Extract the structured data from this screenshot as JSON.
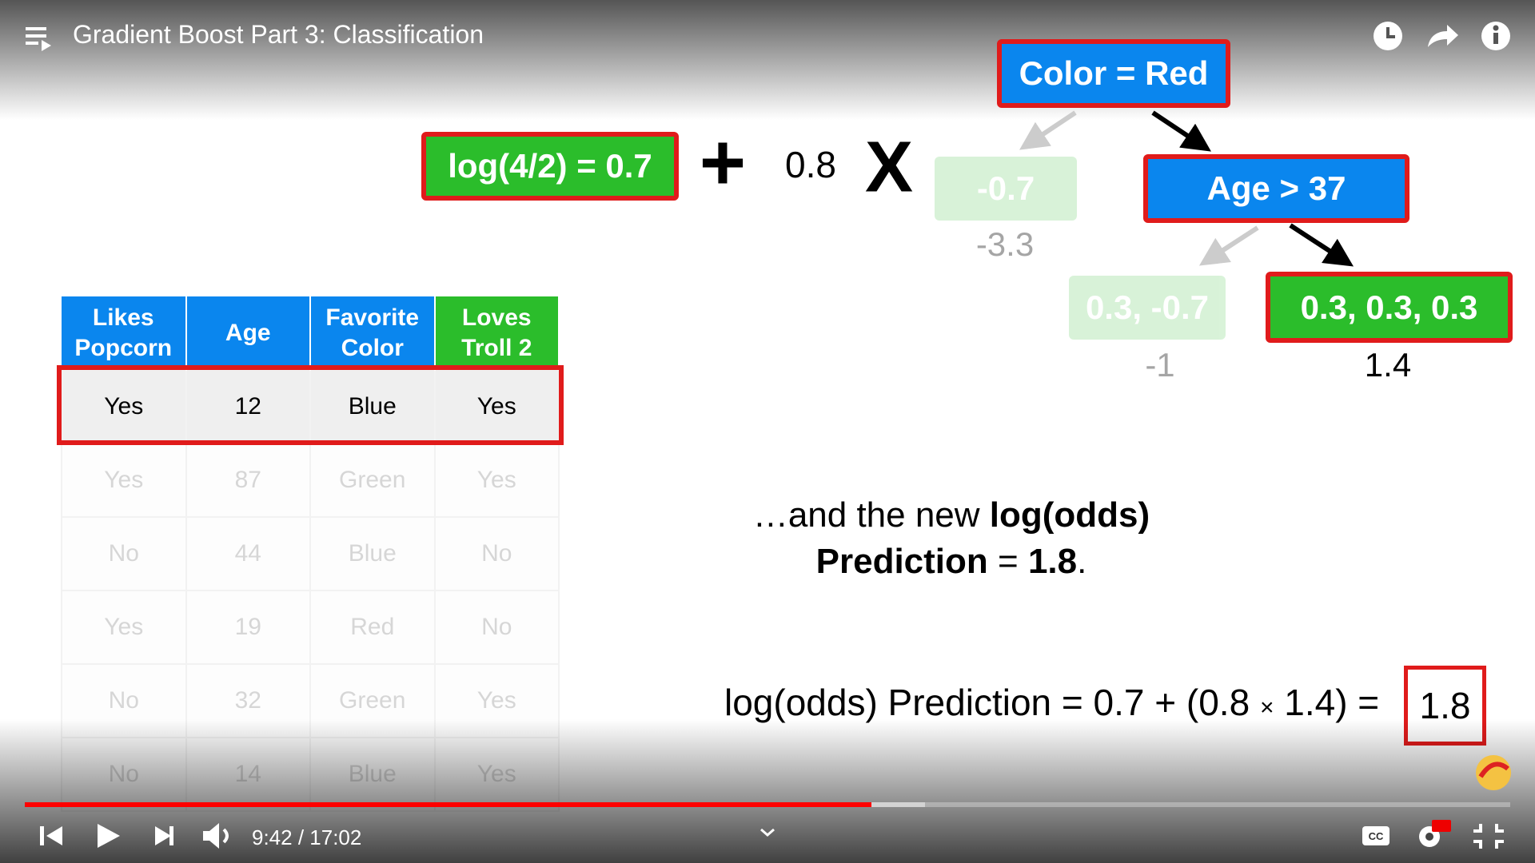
{
  "header": {
    "title": "Gradient Boost Part 3: Classification"
  },
  "formula": {
    "initial": "log(4/2) = 0.7",
    "plus": "+",
    "rate": "0.8",
    "times": "X"
  },
  "tree": {
    "root": "Color = Red",
    "left_leaf": {
      "label": "-0.7",
      "output": "-3.3"
    },
    "inner": "Age > 37",
    "inner_left_leaf": {
      "label": "0.3, -0.7",
      "output": "-1"
    },
    "inner_right_leaf": {
      "label": "0.3, 0.3, 0.3",
      "output": "1.4"
    }
  },
  "table": {
    "columns": [
      "Likes Popcorn",
      "Age",
      "Favorite Color",
      "Loves Troll 2"
    ],
    "rows": [
      [
        "Yes",
        "12",
        "Blue",
        "Yes"
      ],
      [
        "Yes",
        "87",
        "Green",
        "Yes"
      ],
      [
        "No",
        "44",
        "Blue",
        "No"
      ],
      [
        "Yes",
        "19",
        "Red",
        "No"
      ],
      [
        "No",
        "32",
        "Green",
        "Yes"
      ],
      [
        "No",
        "14",
        "Blue",
        "Yes"
      ]
    ]
  },
  "message": {
    "line1_plain": "…and the new",
    "line1_bold": "log(odds)",
    "line2_bold": "Prediction",
    "line2_plain": "=",
    "line2_value": "1.8",
    "line2_end": "."
  },
  "equation": {
    "left": "log(odds) Prediction = 0.7 + (0.8",
    "times": "×",
    "right": "1.4) =",
    "result": "1.8"
  },
  "player": {
    "time": "9:42 / 17:02"
  }
}
